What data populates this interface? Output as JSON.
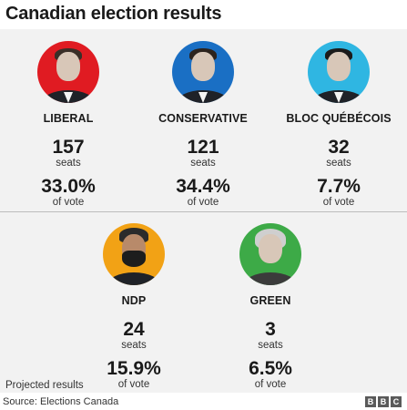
{
  "title": "Canadian election results",
  "parties": [
    {
      "name": "LIBERAL",
      "seats": "157",
      "seats_label": "seats",
      "vote": "33.0%",
      "vote_label": "of vote",
      "color": "#e01b22"
    },
    {
      "name": "CONSERVATIVE",
      "seats": "121",
      "seats_label": "seats",
      "vote": "34.4%",
      "vote_label": "of vote",
      "color": "#1a6fc4"
    },
    {
      "name": "BLOC QUÉBÉCOIS",
      "seats": "32",
      "seats_label": "seats",
      "vote": "7.7%",
      "vote_label": "of vote",
      "color": "#2fb6e2"
    },
    {
      "name": "NDP",
      "seats": "24",
      "seats_label": "seats",
      "vote": "15.9%",
      "vote_label": "of vote",
      "color": "#f2a215"
    },
    {
      "name": "GREEN",
      "seats": "3",
      "seats_label": "seats",
      "vote": "6.5%",
      "vote_label": "of vote",
      "color": "#3daa47"
    }
  ],
  "footnote": "Projected results",
  "source": "Source: Elections Canada",
  "logo": {
    "letters": [
      "B",
      "B",
      "C"
    ]
  }
}
